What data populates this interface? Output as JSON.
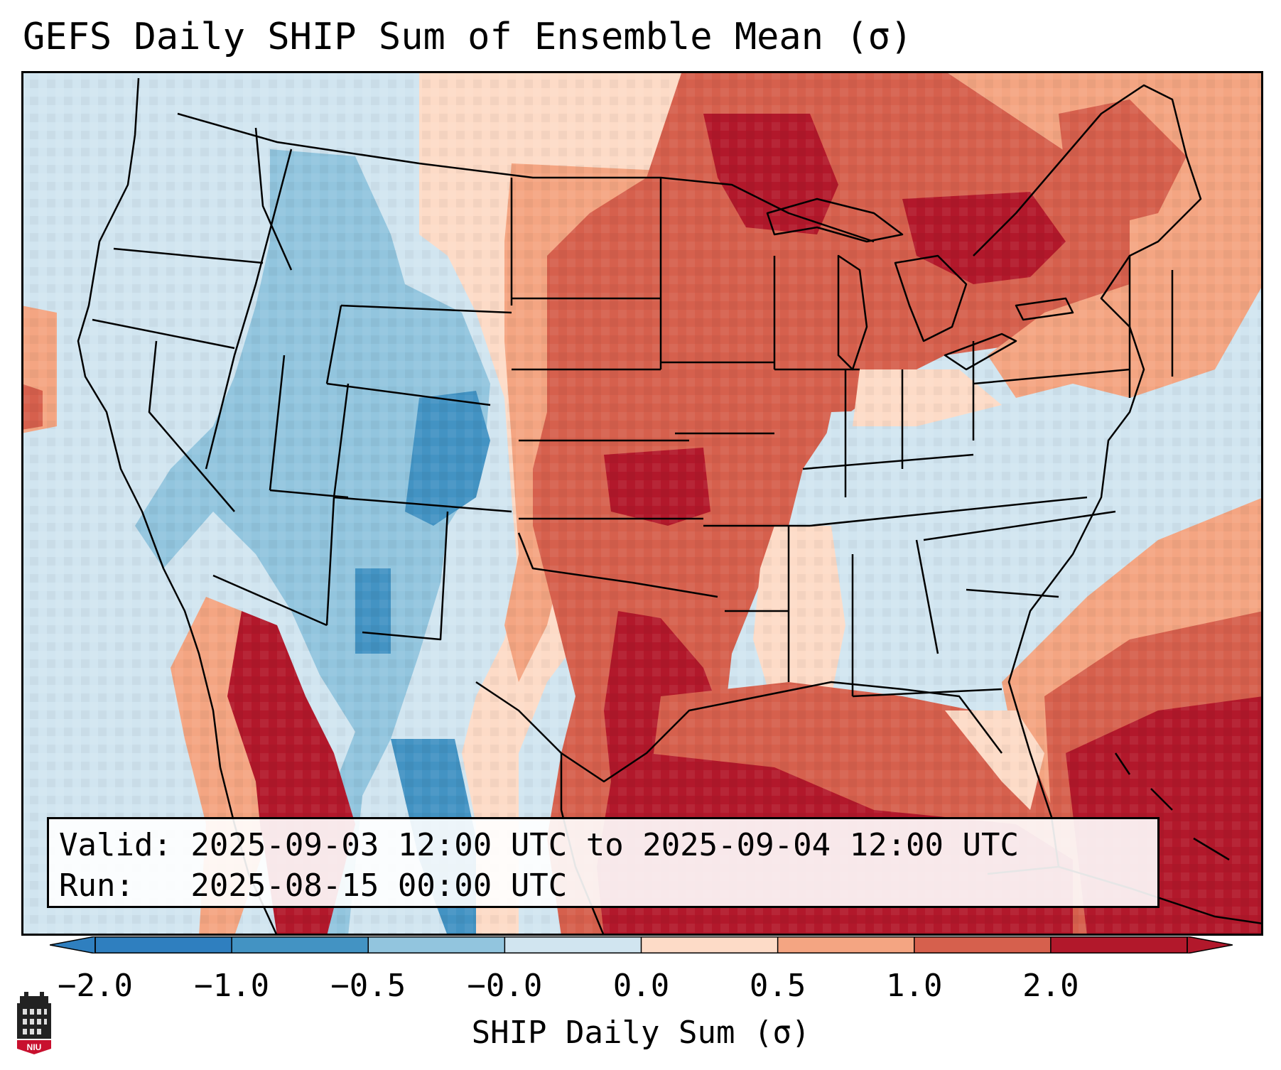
{
  "title": "GEFS Daily SHIP Sum of Ensemble Mean (σ)",
  "info": {
    "valid": "Valid: 2025-09-03 12:00 UTC to 2025-09-04 12:00 UTC",
    "run": "Run:   2025-08-15 00:00 UTC"
  },
  "colorbar": {
    "label": "SHIP Daily Sum (σ)",
    "ticks": [
      "−2.0",
      "−1.0",
      "−0.5",
      "−0.0",
      "0.0",
      "0.5",
      "1.0",
      "2.0"
    ],
    "colors": [
      "#2f7fbf",
      "#4393c3",
      "#92c5de",
      "#d1e5f0",
      "#fddbc7",
      "#f4a582",
      "#d6604d",
      "#b2182b"
    ],
    "extend": "both"
  },
  "logo": {
    "text": "NIU"
  },
  "map": {
    "region": "Contiguous United States",
    "ocean_color": "#d1e5f0"
  }
}
